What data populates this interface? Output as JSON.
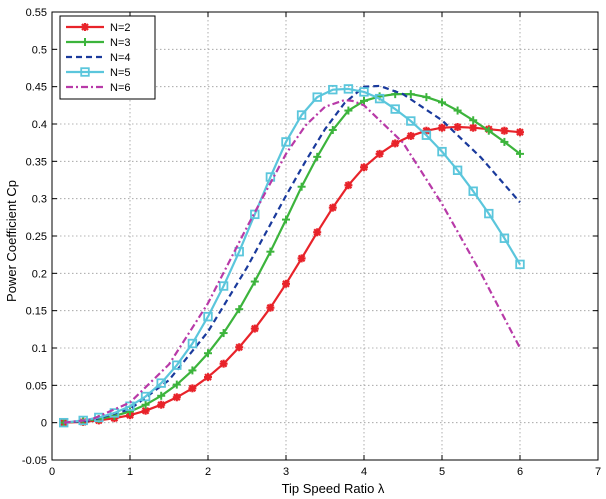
{
  "chart_data": {
    "type": "line",
    "xlabel": "Tip Speed Ratio   λ",
    "ylabel": "Power Coefficient   Cp",
    "xlim": [
      0,
      7
    ],
    "ylim": [
      -0.05,
      0.55
    ],
    "xticks": [
      0,
      1,
      2,
      3,
      4,
      5,
      6,
      7
    ],
    "xtick_labels": [
      "0",
      "1",
      "2",
      "3",
      "4",
      "5",
      "6",
      "7"
    ],
    "yticks": [
      -0.05,
      0,
      0.05,
      0.1,
      0.15,
      0.2,
      0.25,
      0.3,
      0.35,
      0.4,
      0.45,
      0.5,
      0.55
    ],
    "ytick_labels": [
      "-0.05",
      "0",
      "0.05",
      "0.1",
      "0.15",
      "0.2",
      "0.25",
      "0.3",
      "0.35",
      "0.4",
      "0.45",
      "0.5",
      "0.55"
    ],
    "grid": true,
    "legend_position": "top-left",
    "series": [
      {
        "name": "N=2",
        "color": "#e8232a",
        "style": "solid",
        "marker": "star",
        "markers_on": true,
        "x": [
          0.15,
          0.4,
          0.6,
          0.8,
          1.0,
          1.2,
          1.4,
          1.6,
          1.8,
          2.0,
          2.2,
          2.4,
          2.6,
          2.8,
          3.0,
          3.2,
          3.4,
          3.6,
          3.8,
          4.0,
          4.2,
          4.4,
          4.6,
          4.8,
          5.0,
          5.2,
          5.4,
          5.6,
          5.8,
          6.0
        ],
        "y": [
          0.0,
          0.001,
          0.003,
          0.006,
          0.01,
          0.016,
          0.024,
          0.034,
          0.046,
          0.061,
          0.079,
          0.101,
          0.126,
          0.154,
          0.186,
          0.22,
          0.255,
          0.288,
          0.318,
          0.342,
          0.36,
          0.374,
          0.384,
          0.391,
          0.395,
          0.396,
          0.395,
          0.393,
          0.391,
          0.389
        ]
      },
      {
        "name": "N=3",
        "color": "#3cb43c",
        "style": "solid",
        "marker": "plus",
        "markers_on": true,
        "x": [
          0.15,
          0.4,
          0.6,
          0.8,
          1.0,
          1.2,
          1.4,
          1.6,
          1.8,
          2.0,
          2.2,
          2.4,
          2.6,
          2.8,
          3.0,
          3.2,
          3.4,
          3.6,
          3.8,
          4.0,
          4.2,
          4.4,
          4.6,
          4.8,
          5.0,
          5.2,
          5.4,
          5.6,
          5.8,
          6.0
        ],
        "y": [
          0.0,
          0.002,
          0.005,
          0.009,
          0.015,
          0.024,
          0.036,
          0.051,
          0.07,
          0.093,
          0.12,
          0.152,
          0.189,
          0.229,
          0.272,
          0.316,
          0.356,
          0.392,
          0.418,
          0.431,
          0.437,
          0.44,
          0.44,
          0.436,
          0.429,
          0.418,
          0.405,
          0.391,
          0.376,
          0.36
        ]
      },
      {
        "name": "N=4",
        "color": "#1a3a9c",
        "style": "dashed",
        "marker": "none",
        "markers_on": false,
        "x": [
          0.15,
          0.5,
          1.0,
          1.5,
          2.0,
          2.5,
          3.0,
          3.25,
          3.5,
          3.75,
          4.0,
          4.2,
          4.5,
          5.0,
          5.5,
          6.0
        ],
        "y": [
          0.0,
          0.003,
          0.018,
          0.057,
          0.122,
          0.208,
          0.304,
          0.35,
          0.393,
          0.428,
          0.45,
          0.451,
          0.44,
          0.405,
          0.355,
          0.295
        ]
      },
      {
        "name": "N=5",
        "color": "#5bc6dc",
        "style": "solid",
        "marker": "square",
        "markers_on": true,
        "x": [
          0.15,
          0.4,
          0.6,
          0.8,
          1.0,
          1.2,
          1.4,
          1.6,
          1.8,
          2.0,
          2.2,
          2.4,
          2.6,
          2.8,
          3.0,
          3.2,
          3.4,
          3.6,
          3.8,
          4.0,
          4.2,
          4.4,
          4.6,
          4.8,
          5.0,
          5.2,
          5.4,
          5.6,
          5.8,
          6.0
        ],
        "y": [
          0.0,
          0.003,
          0.007,
          0.013,
          0.022,
          0.035,
          0.053,
          0.077,
          0.106,
          0.142,
          0.183,
          0.229,
          0.279,
          0.329,
          0.376,
          0.412,
          0.436,
          0.446,
          0.447,
          0.443,
          0.434,
          0.42,
          0.404,
          0.385,
          0.363,
          0.338,
          0.31,
          0.28,
          0.247,
          0.212
        ]
      },
      {
        "name": "N=6",
        "color": "#b83aa8",
        "style": "dashdot",
        "marker": "none",
        "markers_on": false,
        "x": [
          0.15,
          0.5,
          1.0,
          1.5,
          2.0,
          2.5,
          3.0,
          3.25,
          3.5,
          3.75,
          3.85,
          4.0,
          4.5,
          5.0,
          5.5,
          6.0
        ],
        "y": [
          0.0,
          0.004,
          0.027,
          0.078,
          0.16,
          0.262,
          0.36,
          0.398,
          0.423,
          0.432,
          0.431,
          0.425,
          0.375,
          0.293,
          0.2,
          0.1
        ]
      }
    ]
  }
}
